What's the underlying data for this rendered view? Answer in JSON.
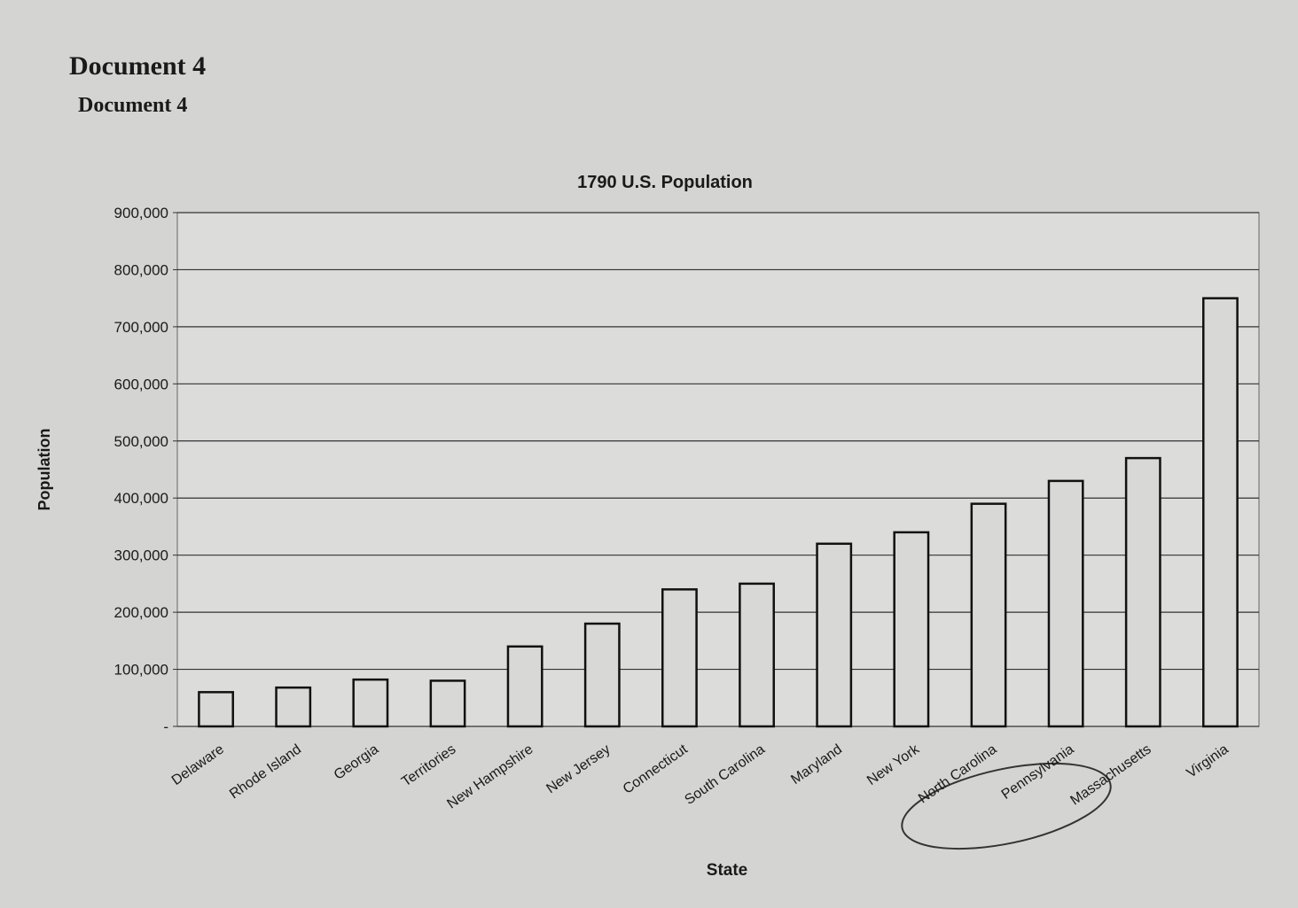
{
  "headings": [
    "Document 4",
    "Document 4"
  ],
  "chart_data": {
    "type": "bar",
    "title": "1790 U.S. Population",
    "x_label": "State",
    "y_label": "Population",
    "categories": [
      "Delaware",
      "Rhode Island",
      "Georgia",
      "Territories",
      "New Hampshire",
      "New Jersey",
      "Connecticut",
      "South Carolina",
      "Maryland",
      "New York",
      "North Carolina",
      "Pennsylvania",
      "Massachusetts",
      "Virginia"
    ],
    "values": [
      60000,
      68000,
      82000,
      80000,
      140000,
      180000,
      240000,
      250000,
      320000,
      340000,
      390000,
      430000,
      470000,
      750000
    ],
    "color": "#d8d8d6",
    "ylim": [
      0,
      900000
    ],
    "yticks": [
      {
        "value": 0,
        "label": "-"
      },
      {
        "value": 100000,
        "label": "100,000"
      },
      {
        "value": 200000,
        "label": "200,000"
      },
      {
        "value": 300000,
        "label": "300,000"
      },
      {
        "value": 400000,
        "label": "400,000"
      },
      {
        "value": 500000,
        "label": "500,000"
      },
      {
        "value": 600000,
        "label": "600,000"
      },
      {
        "value": 700000,
        "label": "700,000"
      },
      {
        "value": 800000,
        "label": "800,000"
      },
      {
        "value": 900000,
        "label": "900,000"
      }
    ],
    "grid": true
  }
}
